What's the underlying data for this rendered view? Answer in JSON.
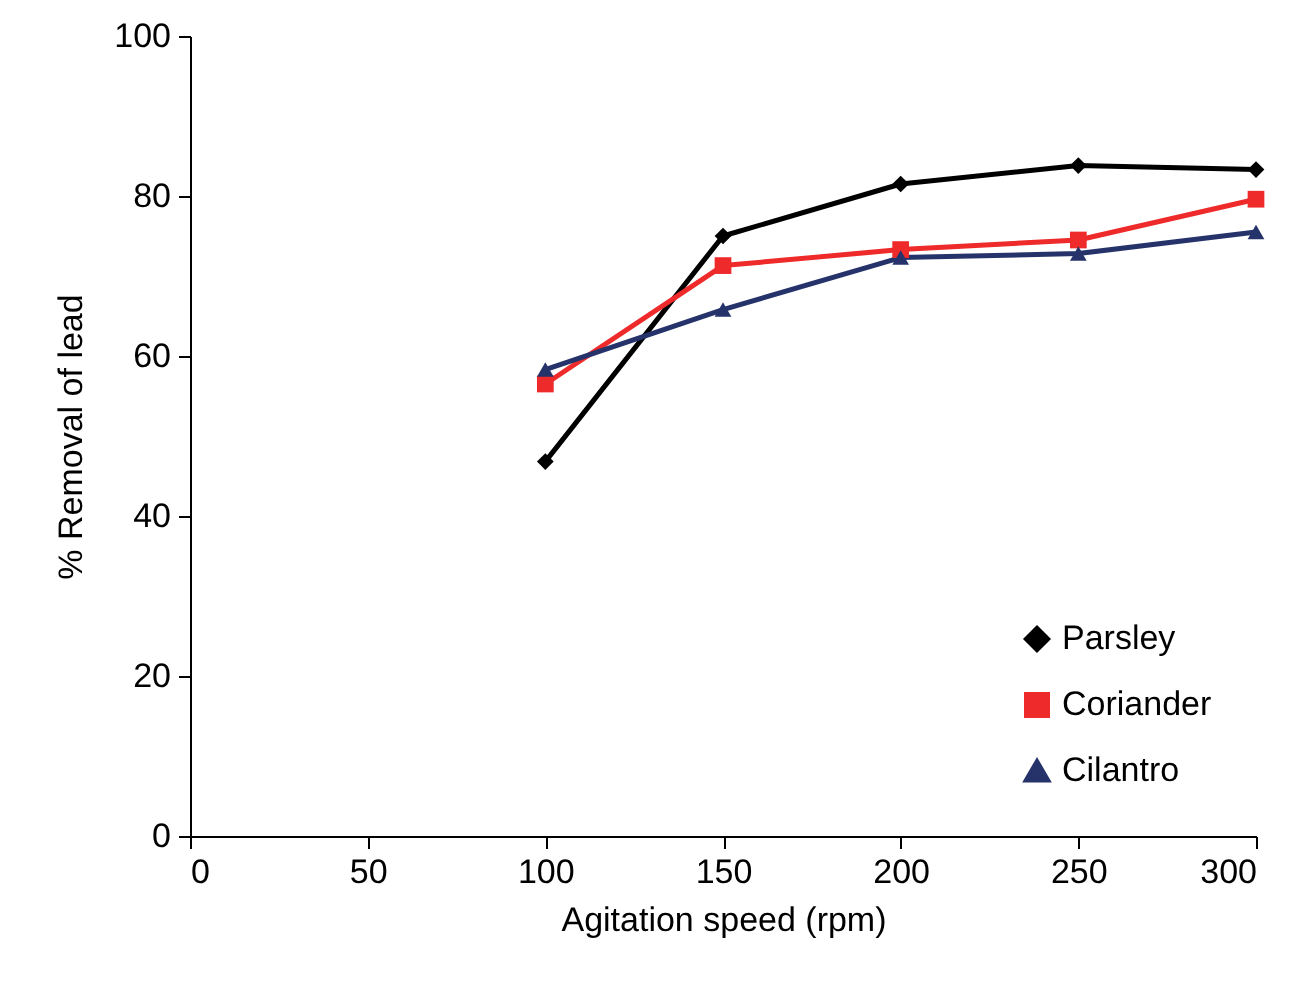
{
  "chart_data": {
    "type": "line",
    "xlabel": "Agitation speed (rpm)",
    "ylabel": "% Removal of lead",
    "x": [
      100,
      150,
      200,
      250,
      300
    ],
    "xlim": [
      0,
      300
    ],
    "xticks": [
      0,
      50,
      100,
      150,
      200,
      250,
      300
    ],
    "ylim": [
      0,
      100
    ],
    "yticks": [
      0,
      20,
      40,
      60,
      80,
      100
    ],
    "grid": false,
    "legend": "bottom right",
    "line_style": "solid",
    "series": [
      {
        "name": "Parsley",
        "color": "#000000",
        "marker": "diamond",
        "values": [
          46.8,
          75,
          81.5,
          83.8,
          83.3
        ]
      },
      {
        "name": "Coriander",
        "color": "#ee2a2a",
        "marker": "square",
        "values": [
          56.5,
          71.3,
          73.3,
          74.5,
          79.6
        ]
      },
      {
        "name": "Cilantro",
        "color": "#26336b",
        "marker": "triangle",
        "values": [
          58.3,
          65.8,
          72.3,
          72.8,
          75.5
        ]
      }
    ]
  }
}
